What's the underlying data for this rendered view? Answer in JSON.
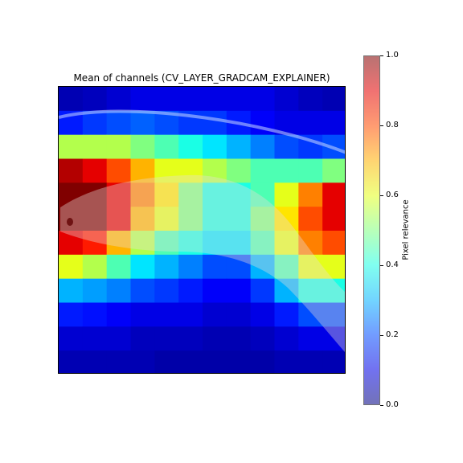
{
  "chart_data": {
    "type": "heatmap",
    "title": "Mean of channels (CV_LAYER_GRADCAM_EXPLAINER)",
    "image_subject": "fish",
    "colormap": "jet",
    "overlay_alpha": 0.5,
    "axes_visible": false,
    "colorbar": {
      "label": "Pixel relevance",
      "ticks": [
        "0.0",
        "0.2",
        "0.4",
        "0.6",
        "0.8",
        "1.0"
      ],
      "range": [
        0.0,
        1.0
      ],
      "placement": "right"
    },
    "heatmap_grid": [
      [
        0.05,
        0.06,
        0.08,
        0.1,
        0.1,
        0.1,
        0.1,
        0.1,
        0.1,
        0.08,
        0.06,
        0.05
      ],
      [
        0.15,
        0.18,
        0.2,
        0.22,
        0.2,
        0.18,
        0.18,
        0.15,
        0.12,
        0.1,
        0.1,
        0.1
      ],
      [
        0.55,
        0.55,
        0.55,
        0.5,
        0.45,
        0.4,
        0.35,
        0.3,
        0.25,
        0.2,
        0.18,
        0.2
      ],
      [
        0.95,
        0.9,
        0.8,
        0.7,
        0.6,
        0.6,
        0.55,
        0.5,
        0.45,
        0.45,
        0.45,
        0.5
      ],
      [
        1.0,
        1.0,
        0.9,
        0.75,
        0.65,
        0.5,
        0.4,
        0.4,
        0.45,
        0.6,
        0.75,
        0.9
      ],
      [
        1.0,
        1.0,
        0.9,
        0.7,
        0.6,
        0.5,
        0.4,
        0.4,
        0.5,
        0.65,
        0.8,
        0.9
      ],
      [
        0.9,
        0.85,
        0.7,
        0.55,
        0.45,
        0.4,
        0.35,
        0.35,
        0.45,
        0.6,
        0.75,
        0.8
      ],
      [
        0.6,
        0.55,
        0.45,
        0.35,
        0.3,
        0.25,
        0.2,
        0.2,
        0.3,
        0.45,
        0.6,
        0.6
      ],
      [
        0.3,
        0.28,
        0.25,
        0.2,
        0.18,
        0.15,
        0.12,
        0.12,
        0.18,
        0.3,
        0.4,
        0.4
      ],
      [
        0.15,
        0.14,
        0.12,
        0.1,
        0.1,
        0.1,
        0.08,
        0.08,
        0.1,
        0.15,
        0.2,
        0.2
      ],
      [
        0.08,
        0.08,
        0.08,
        0.06,
        0.06,
        0.06,
        0.05,
        0.05,
        0.06,
        0.08,
        0.1,
        0.1
      ],
      [
        0.05,
        0.05,
        0.05,
        0.05,
        0.04,
        0.04,
        0.04,
        0.04,
        0.04,
        0.05,
        0.05,
        0.05
      ]
    ]
  }
}
